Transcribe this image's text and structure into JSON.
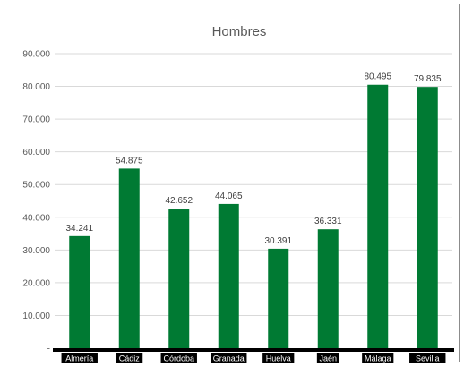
{
  "chart_data": {
    "type": "bar",
    "title": "Hombres",
    "categories": [
      "Almería",
      "Cádiz",
      "Córdoba",
      "Granada",
      "Huelva",
      "Jaén",
      "Málaga",
      "Sevilla"
    ],
    "values": [
      34241,
      54875,
      42652,
      44065,
      30391,
      36331,
      80495,
      79835
    ],
    "data_labels": [
      "34.241",
      "54.875",
      "42.652",
      "44.065",
      "30.391",
      "36.331",
      "80.495",
      "79.835"
    ],
    "y_ticks": [
      "-",
      "10.000",
      "20.000",
      "30.000",
      "40.000",
      "50.000",
      "60.000",
      "70.000",
      "80.000",
      "90.000"
    ],
    "ylim": [
      0,
      90000
    ],
    "grid": true,
    "colors": {
      "bar": "#007a33",
      "gridline": "#d9d9d9",
      "axis": "#000000",
      "tick_label_bg": "#000000"
    }
  }
}
